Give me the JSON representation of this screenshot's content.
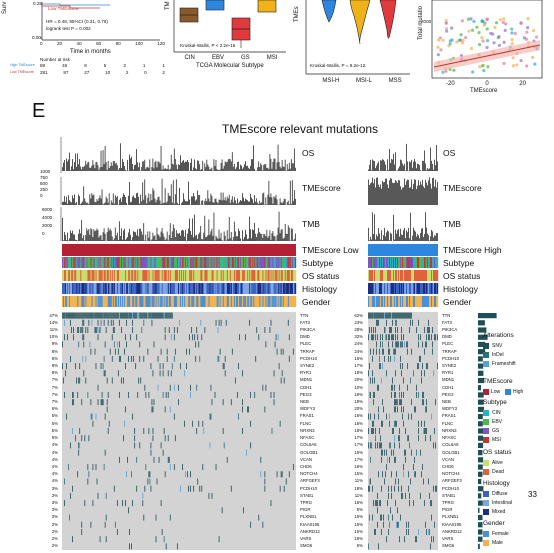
{
  "top_strip": {
    "km": {
      "y_label": "Surv",
      "legend_low": "Low TMEscore",
      "stats_line1": "HR = 0.48, 95%CI (0.31, 0.76)",
      "stats_line2": "logrank test P = 0.002",
      "x_ticks": [
        "0",
        "20",
        "40",
        "60",
        "80",
        "100",
        "120"
      ],
      "x_label": "Time in months",
      "risk_title": "Number at risk",
      "risk_row_high": "High TMEscore",
      "risk_row_low": "Low TMEscore",
      "risk_high": [
        "88",
        "46",
        "8",
        "5",
        "2",
        "1",
        "1"
      ],
      "risk_low": [
        "281",
        "87",
        "27",
        "10",
        "2",
        "0",
        "2"
      ],
      "y_ticks": [
        "0.25",
        "0.00"
      ]
    },
    "box_subtype": {
      "test": "Kruskal-Wallis, P < 2.2e-16",
      "categories": [
        "CIN",
        "EBV",
        "GS",
        "MSI"
      ],
      "colors": [
        "#8B5A2B",
        "#2E86DE",
        "#E03A3E",
        "#F0B21A"
      ],
      "x_label": "TCGA Molecular Subtype",
      "y_label": "TM"
    },
    "violin_msi": {
      "test": "Kruskal-Wallis, P = 9.2e-12",
      "categories": [
        "MSI-H",
        "MSI-L",
        "MSS"
      ],
      "colors": [
        "#2E86DE",
        "#F0B21A",
        "#E03A3E"
      ],
      "y_label": "TMEs"
    },
    "scatter": {
      "y_label": "Total mutatio",
      "y_tick": "2000",
      "x_ticks": [
        "-20",
        "0",
        "20"
      ],
      "x_label": "TMEscore"
    }
  },
  "panel_label": "E",
  "title": "TMEscore relevant mutations",
  "tracks": {
    "os": "OS",
    "tmescore": "TMEscore",
    "tmb": "TMB",
    "group_low": "TMEscore Low",
    "group_high": "TMEscore High",
    "subtype": "Subtype",
    "os_status": "OS status",
    "histology": "Histology",
    "gender": "Gender",
    "left_bar_ticks": [
      "1000",
      "750",
      "500",
      "250",
      "0"
    ],
    "tmb_ticks": [
      "6000",
      "4000",
      "2000",
      "0"
    ]
  },
  "genes": [
    "TTN",
    "FAT3",
    "PIK3CA",
    "DMD",
    "PLEC",
    "TRRAP",
    "PCDH10",
    "SYNE2",
    "RYR1",
    "MDN1",
    "CDH1",
    "PEG3",
    "NEB",
    "WDFY3",
    "FRAS1",
    "FLNC",
    "NRXN3",
    "NFASC",
    "COL6A6",
    "GOLGB1",
    "VCAN",
    "CHD6",
    "NOTCH4",
    "ARFGEF3",
    "PCDH10",
    "STAB1",
    "TPRG",
    "PIGR",
    "PLXNB1",
    "KIAA0195",
    "ANKRD12",
    "VARS",
    "SMG6"
  ],
  "left_pct": [
    "47%",
    "14%",
    "11%",
    "10%",
    "9%",
    "8%",
    "8%",
    "8%",
    "8%",
    "7%",
    "7%",
    "7%",
    "7%",
    "6%",
    "5%",
    "5%",
    "5%",
    "5%",
    "4%",
    "4%",
    "4%",
    "4%",
    "4%",
    "4%",
    "3%",
    "3%",
    "3%",
    "3%",
    "3%",
    "2%",
    "2%",
    "2%",
    "2%"
  ],
  "right_pct": [
    "62%",
    "23%",
    "28%",
    "32%",
    "24%",
    "24%",
    "16%",
    "17%",
    "18%",
    "20%",
    "10%",
    "19%",
    "19%",
    "20%",
    "16%",
    "16%",
    "18%",
    "17%",
    "17%",
    "15%",
    "17%",
    "16%",
    "15%",
    "11%",
    "18%",
    "11%",
    "16%",
    "5%",
    "15%",
    "15%",
    "15%",
    "15%",
    "6%"
  ],
  "legend": {
    "alterations_title": "Alterations",
    "alterations": [
      {
        "label": "SNV",
        "color": "#1F4E57"
      },
      {
        "label": "InDel",
        "color": "#2E6F7A"
      },
      {
        "label": "Frameshift",
        "color": "#56A1D6"
      }
    ],
    "tmescore_title": "TMEscore",
    "tmescore": [
      {
        "label": "Low",
        "color": "#B22234"
      },
      {
        "label": "High",
        "color": "#2E86DE"
      }
    ],
    "subtype_title": "Subtype",
    "subtype": [
      {
        "label": "CIN",
        "color": "#2BB0C0"
      },
      {
        "label": "EBV",
        "color": "#4DB848"
      },
      {
        "label": "GS",
        "color": "#7E57C2"
      },
      {
        "label": "MSI",
        "color": "#C0392B"
      }
    ],
    "os_title": "OS status",
    "os": [
      {
        "label": "Alive",
        "color": "#C7DE6B"
      },
      {
        "label": "Dead",
        "color": "#E0623A"
      }
    ],
    "histology_title": "Histology",
    "histology": [
      {
        "label": "Diffuse",
        "color": "#3A63C4"
      },
      {
        "label": "Intestinal",
        "color": "#7AA4E8"
      },
      {
        "label": "Mixed",
        "color": "#1D2D80"
      }
    ],
    "gender_title": "Gender",
    "gender": [
      {
        "label": "Female",
        "color": "#4A8FD8"
      },
      {
        "label": "Male",
        "color": "#F2B24D"
      }
    ]
  },
  "page_number": "33"
}
